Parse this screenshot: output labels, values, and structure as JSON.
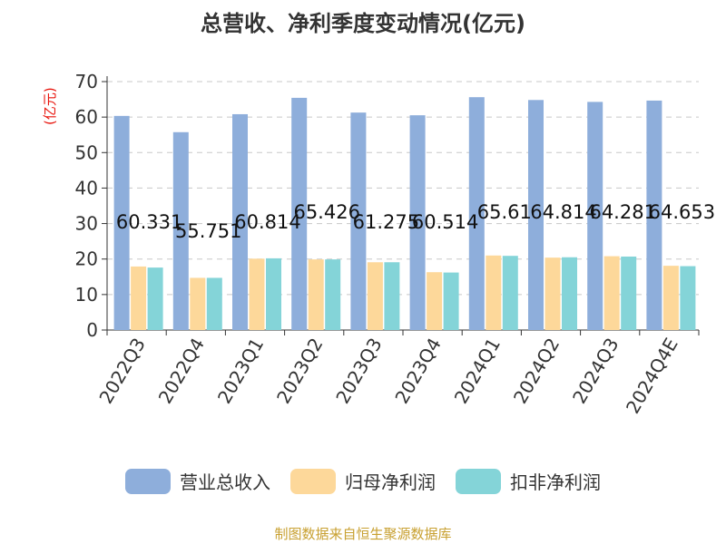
{
  "chart_data": {
    "type": "bar",
    "title": "总营收、净利季度变动情况(亿元)",
    "ylabel": "(亿元)",
    "ylim": [
      0,
      70
    ],
    "yticks": [
      0,
      10,
      20,
      30,
      40,
      50,
      60,
      70
    ],
    "categories": [
      "2022Q3",
      "2022Q4",
      "2023Q1",
      "2023Q2",
      "2023Q3",
      "2023Q4",
      "2024Q1",
      "2024Q2",
      "2024Q3",
      "2024Q4E"
    ],
    "series": [
      {
        "name": "营业总收入",
        "color": "#8eaedb",
        "values": [
          60.331,
          55.751,
          60.814,
          65.426,
          61.275,
          60.514,
          65.61,
          64.814,
          64.281,
          64.653
        ],
        "labels": [
          "60.331",
          "55.751",
          "60.814",
          "65.426",
          "61.275",
          "60.514",
          "65.61",
          "64.814",
          "64.281",
          "64.653"
        ]
      },
      {
        "name": "归母净利润",
        "color": "#fdd89a",
        "values": [
          17.9,
          14.7,
          20.1,
          19.9,
          19.1,
          16.3,
          21.0,
          20.4,
          20.8,
          18.1
        ]
      },
      {
        "name": "扣非净利润",
        "color": "#84d4d8",
        "values": [
          17.6,
          14.7,
          20.2,
          19.9,
          19.1,
          16.2,
          20.9,
          20.5,
          20.7,
          18.0
        ]
      }
    ],
    "legend_position": "bottom",
    "grid": true
  },
  "source": "制图数据来自恒生聚源数据库"
}
